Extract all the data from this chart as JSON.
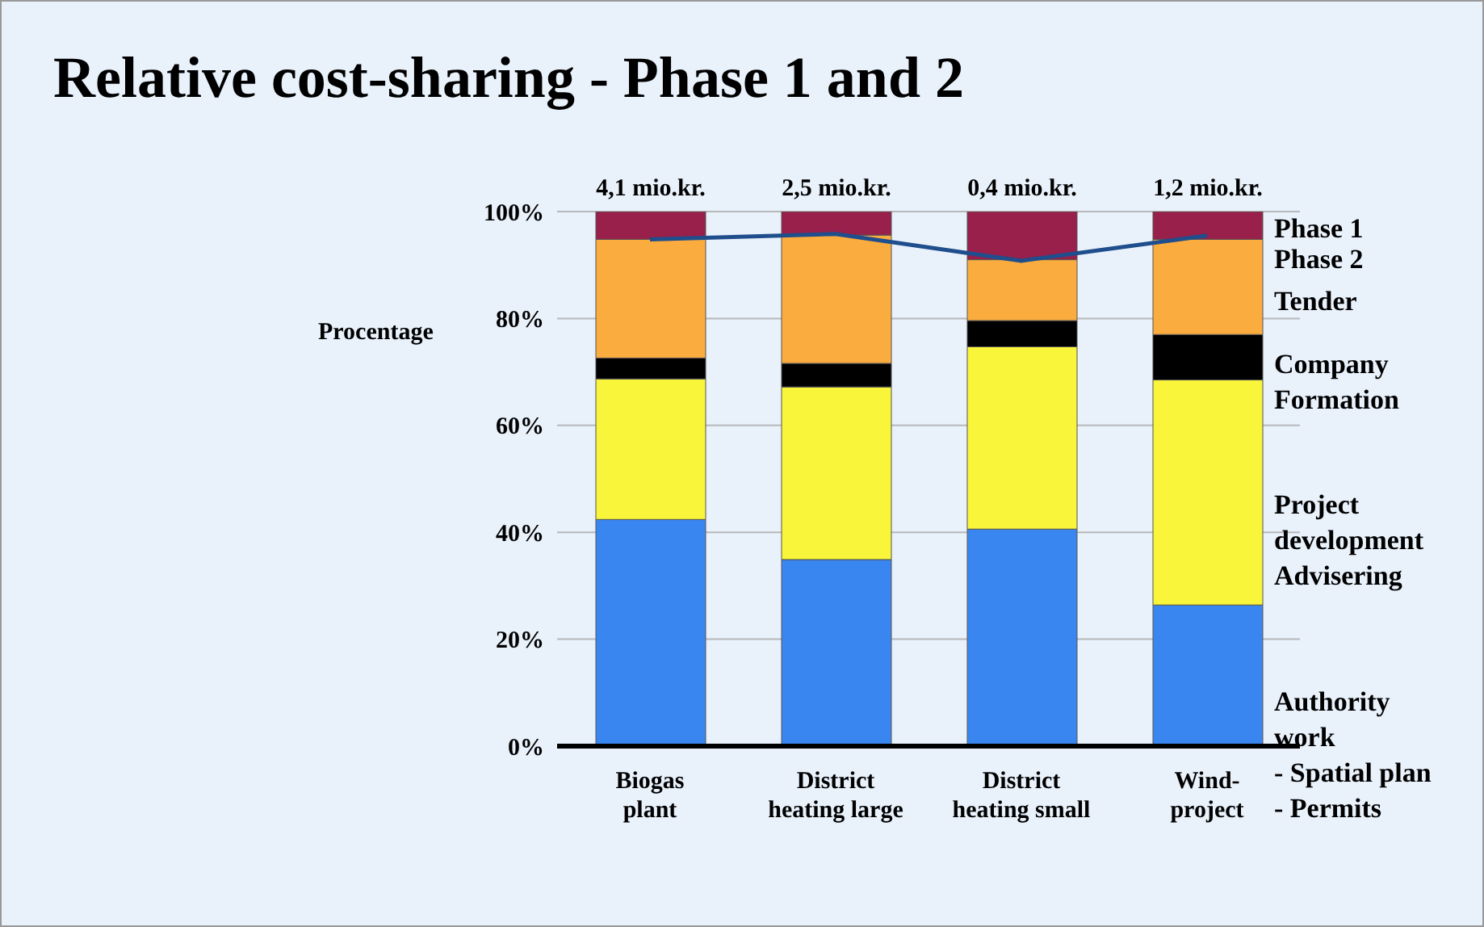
{
  "chart_data": {
    "type": "bar",
    "stacked": true,
    "title": "Relative cost-sharing - Phase 1 and 2",
    "ylabel": "Procentage",
    "categories": [
      "Biogas\nplant",
      "District\nheating large",
      "District\nheating small",
      "Wind-\nproject"
    ],
    "series": [
      {
        "name": "Authority\nwork\n- Spatial plan\n- Permits",
        "color": "#3a86f0",
        "values": [
          42.4,
          34.9,
          40.6,
          26.4
        ]
      },
      {
        "name": "Project\ndevelopment\nAdvisering",
        "color": "#f8f53a",
        "values": [
          26.3,
          32.3,
          34.1,
          42.1
        ]
      },
      {
        "name": "Company\nFormation",
        "color": "#000000",
        "values": [
          3.9,
          4.4,
          4.9,
          8.5
        ]
      },
      {
        "name": "Tender",
        "color": "#fbac3e",
        "values": [
          22.2,
          24.0,
          11.4,
          17.8
        ]
      },
      {
        "name": "Phase 1",
        "color": "#98204a",
        "values": [
          5.2,
          4.4,
          9.0,
          5.2
        ]
      },
      {
        "type": "line",
        "color": "#1f4e8c",
        "values": [
          94.8,
          95.8,
          90.8,
          95.5
        ]
      }
    ],
    "annotations": [
      "Phase 2",
      {
        "text": "4,1 mio.kr.",
        "x": "Biogas\nplant",
        "y": 100
      },
      {
        "text": "2,5 mio.kr.",
        "x": "District\nheating large",
        "y": 100
      },
      {
        "text": "0,4 mio.kr.",
        "x": "District\nheating small",
        "y": 100
      },
      {
        "text": "1,2 mio.kr.",
        "x": "Wind-\nproject",
        "y": 100
      }
    ],
    "ylim": [
      0,
      100
    ],
    "yticks": [
      {
        "value": 0,
        "label": "0%"
      },
      {
        "value": 20,
        "label": "20%"
      },
      {
        "value": 40,
        "label": "40%"
      },
      {
        "value": 60,
        "label": "60%"
      },
      {
        "value": 80,
        "label": "80%"
      },
      {
        "value": 100,
        "label": "100%"
      }
    ],
    "grid": "y"
  }
}
